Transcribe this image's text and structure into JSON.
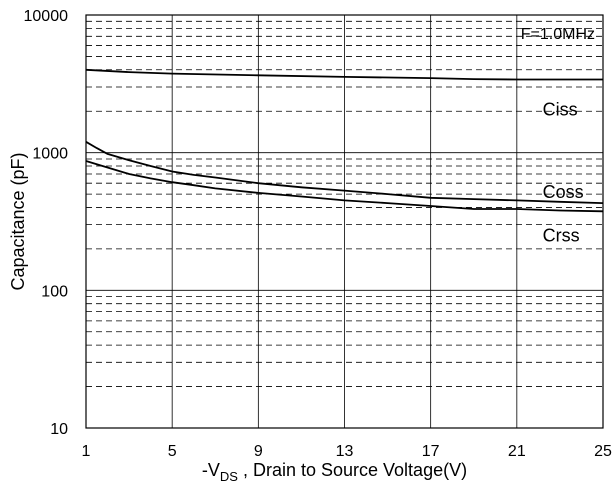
{
  "chart_data": {
    "type": "line",
    "title": "",
    "xlabel": {
      "prefix": "-V",
      "subscript": "DS",
      "suffix": " , Drain to Source Voltage(V)"
    },
    "ylabel": "Capacitance (pF)",
    "xlim": [
      1,
      25
    ],
    "ylim": [
      10,
      10000
    ],
    "yscale": "log",
    "xticks": [
      1,
      5,
      9,
      13,
      17,
      21,
      25
    ],
    "xtick_labels": [
      "1",
      "5",
      "9",
      "13",
      "17",
      "21",
      "25"
    ],
    "yticks": [
      10,
      100,
      1000,
      10000
    ],
    "ytick_labels": [
      "10",
      "100",
      "1000",
      "10000"
    ],
    "grid": true,
    "annotation": "F=1.0MHz",
    "series": [
      {
        "name": "Ciss",
        "x": [
          1,
          3,
          5,
          9,
          13,
          17,
          19,
          21,
          25
        ],
        "values": [
          4000,
          3850,
          3750,
          3650,
          3550,
          3480,
          3420,
          3400,
          3400
        ]
      },
      {
        "name": "Coss",
        "x": [
          1,
          1.5,
          2,
          3,
          4,
          5,
          6,
          7,
          9,
          11,
          13,
          15,
          17,
          19,
          21,
          23,
          25
        ],
        "values": [
          1200,
          1080,
          980,
          880,
          800,
          730,
          690,
          660,
          600,
          560,
          530,
          500,
          470,
          460,
          450,
          440,
          430
        ]
      },
      {
        "name": "Crss",
        "x": [
          1,
          2,
          3,
          4,
          5,
          6,
          7,
          9,
          11,
          13,
          15,
          17,
          19,
          21,
          23,
          25
        ],
        "values": [
          870,
          780,
          700,
          650,
          610,
          580,
          550,
          510,
          480,
          450,
          430,
          410,
          390,
          390,
          380,
          375
        ]
      }
    ],
    "colors": {
      "line": "#000000",
      "grid": "#000000",
      "background": "#ffffff"
    }
  }
}
